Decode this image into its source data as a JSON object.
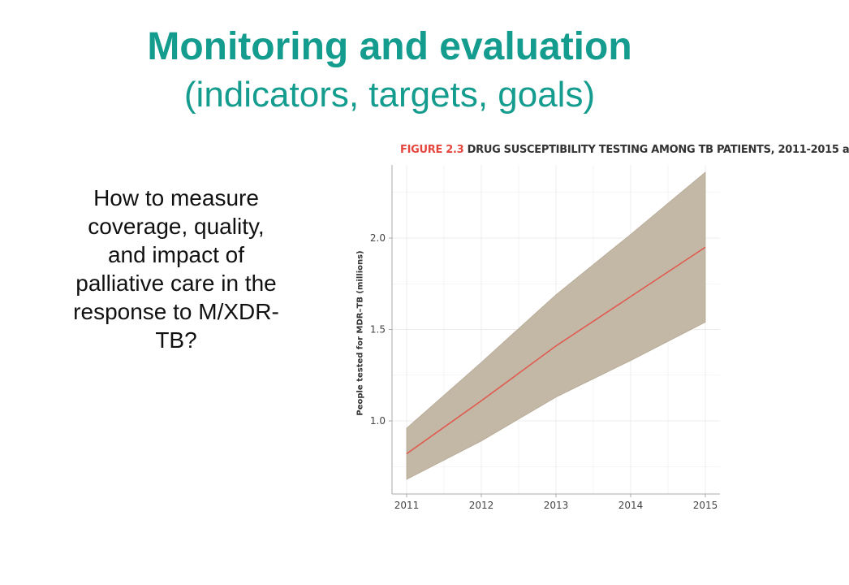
{
  "slide": {
    "title": "Monitoring and evaluation",
    "subtitle": "(indicators, targets, goals)",
    "question": "How to measure coverage, quality, and impact of palliative care in the response to M/XDR-TB?"
  },
  "figure": {
    "caption_number": "FIGURE 2.3",
    "caption_text": " DRUG SUSCEPTIBILITY TESTING AMONG TB PATIENTS, 2011-2015 a"
  },
  "chart_data": {
    "type": "line",
    "title": "FIGURE 2.3 DRUG SUSCEPTIBILITY TESTING AMONG TB PATIENTS, 2011-2015",
    "xlabel": "",
    "ylabel": "People tested for MDR–TB (millions)",
    "x": [
      2011,
      2012,
      2013,
      2014,
      2015
    ],
    "x_tick_labels": [
      "2011",
      "2012",
      "2013",
      "2014",
      "2015"
    ],
    "y_ticks": [
      1.0,
      1.5,
      2.0
    ],
    "y_tick_labels": [
      "1.0",
      "1.5",
      "2.0"
    ],
    "xlim": [
      2011,
      2015
    ],
    "ylim": [
      0.6,
      2.4
    ],
    "grid": true,
    "series": [
      {
        "values": [
          0.82,
          1.11,
          1.41,
          1.68,
          1.95
        ],
        "lower": [
          0.68,
          0.89,
          1.13,
          1.33,
          1.54
        ],
        "upper": [
          0.96,
          1.32,
          1.69,
          2.02,
          2.36
        ]
      }
    ],
    "colors": {
      "line": "#e05a4e",
      "band": "#c3b7a6",
      "band_edge": "#b5a894",
      "grid": "#ececec",
      "axis": "#aaaaaa",
      "tick_text": "#444444"
    }
  }
}
